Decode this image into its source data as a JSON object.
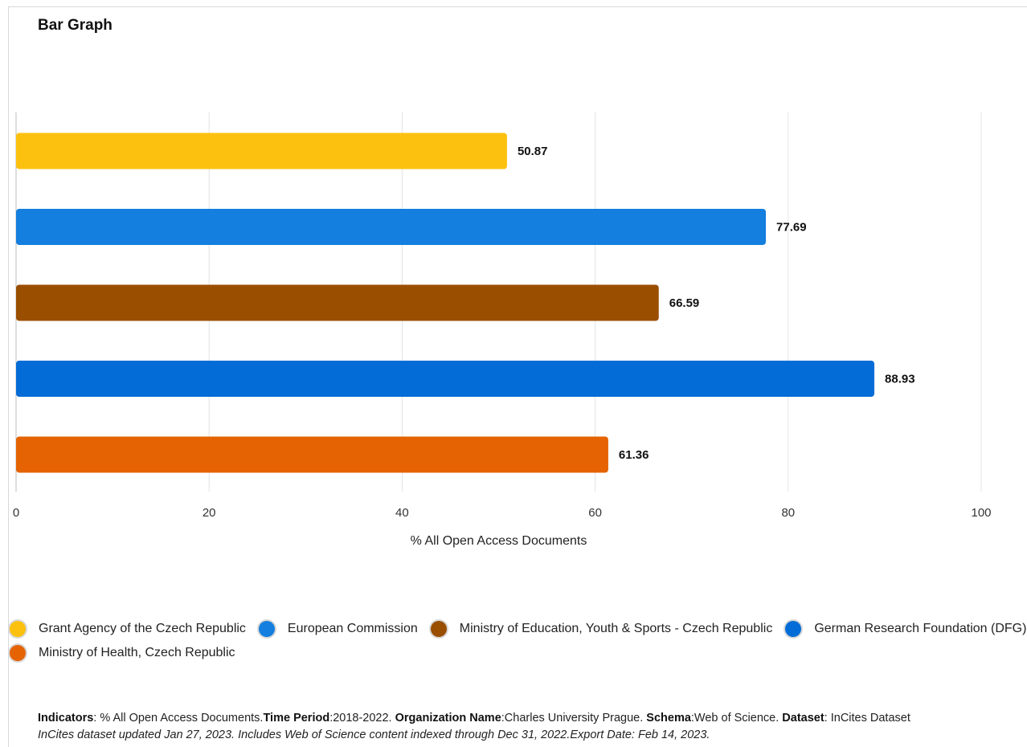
{
  "title": "Bar Graph",
  "chart_data": {
    "type": "bar",
    "orientation": "horizontal",
    "categories": [
      "Grant Agency of the Czech Republic",
      "European Commission",
      "Ministry of Education, Youth & Sports - Czech Republic",
      "German Research Foundation (DFG)",
      "Ministry of Health, Czech Republic"
    ],
    "values": [
      50.87,
      77.69,
      66.59,
      88.93,
      61.36
    ],
    "value_labels": [
      "50.87",
      "77.69",
      "66.59",
      "88.93",
      "61.36"
    ],
    "colors": [
      "#FCC10F",
      "#147FDE",
      "#9A4E00",
      "#036CD6",
      "#E56302"
    ],
    "xlabel": "% All Open Access Documents",
    "ylabel": "",
    "xlim": [
      0,
      100
    ],
    "xticks": [
      "0",
      "20",
      "40",
      "60",
      "80",
      "100"
    ],
    "grid": true,
    "legend_position": "bottom"
  },
  "footer": {
    "line1": [
      {
        "label": "Indicators",
        "text": ": % All Open Access Documents."
      },
      {
        "label": "Time Period",
        "text": ":2018-2022. "
      },
      {
        "label": "Organization Name",
        "text": ":Charles University Prague. "
      },
      {
        "label": "Schema",
        "text": ":Web of Science. "
      },
      {
        "label": "Dataset",
        "text": ": InCites Dataset"
      }
    ],
    "line2": "InCites dataset updated Jan 27, 2023. Includes Web of Science content indexed through Dec 31, 2022.Export Date: Feb 14, 2023."
  }
}
